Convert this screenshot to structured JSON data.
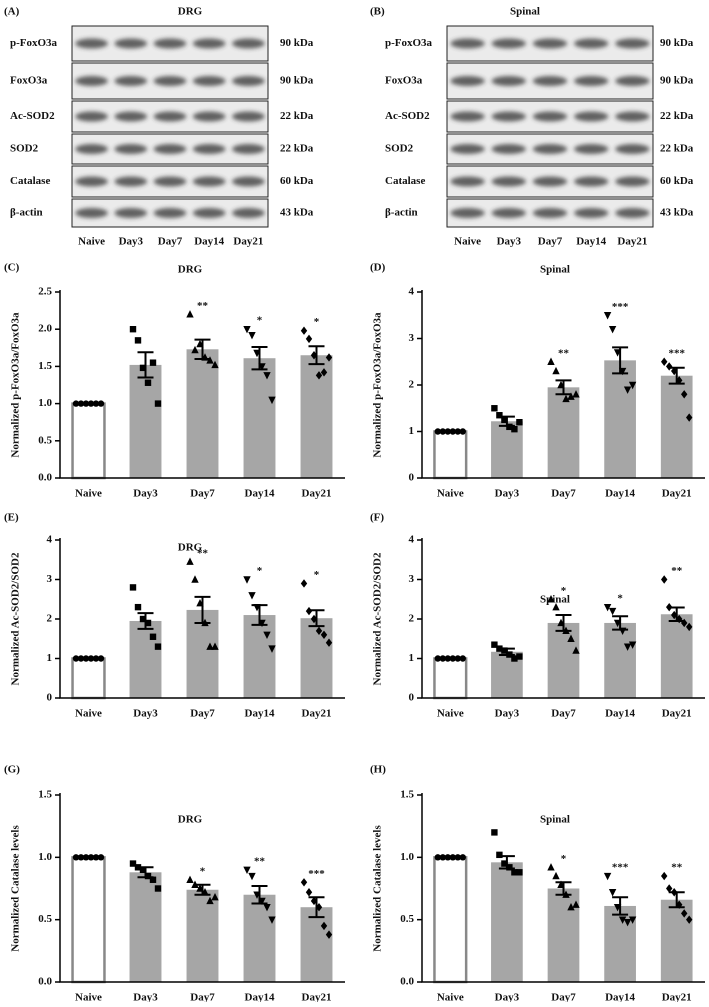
{
  "blots": [
    {
      "panel": "(A)",
      "title": "DRG",
      "rows": [
        {
          "protein": "p-FoxO3a",
          "size": "90 kDa"
        },
        {
          "protein": "FoxO3a",
          "size": "90 kDa"
        },
        {
          "protein": "Ac-SOD2",
          "size": "22 kDa"
        },
        {
          "protein": "SOD2",
          "size": "22 kDa"
        },
        {
          "protein": "Catalase",
          "size": "60 kDa"
        },
        {
          "protein": "β-actin",
          "size": "43 kDa"
        }
      ],
      "lanes": [
        "Naive",
        "Day3",
        "Day7",
        "Day14",
        "Day21"
      ]
    },
    {
      "panel": "(B)",
      "title": "Spinal",
      "rows": [
        {
          "protein": "p-FoxO3a",
          "size": "90 kDa"
        },
        {
          "protein": "FoxO3a",
          "size": "90 kDa"
        },
        {
          "protein": "Ac-SOD2",
          "size": "22 kDa"
        },
        {
          "protein": "SOD2",
          "size": "22 kDa"
        },
        {
          "protein": "Catalase",
          "size": "60 kDa"
        },
        {
          "protein": "β-actin",
          "size": "43 kDa"
        }
      ],
      "lanes": [
        "Naive",
        "Day3",
        "Day7",
        "Day14",
        "Day21"
      ]
    }
  ],
  "chart_data": [
    {
      "type": "bar",
      "panel": "(C)",
      "title": "DRG",
      "ylabel": "Normalized p-FoxO3a/FoxO3a",
      "categories": [
        "Naive",
        "Day3",
        "Day7",
        "Day14",
        "Day21"
      ],
      "colors": [
        "#ffffff",
        "#a6a6a6",
        "#a6a6a6",
        "#a6a6a6",
        "#a6a6a6"
      ],
      "markers": [
        "circle",
        "square",
        "triangle-up",
        "triangle-down",
        "diamond"
      ],
      "values": [
        1,
        1.52,
        1.73,
        1.61,
        1.65
      ],
      "errors": [
        0,
        0.17,
        0.13,
        0.15,
        0.12
      ],
      "annotations": [
        null,
        null,
        "**",
        "*",
        "*"
      ],
      "points": [
        [
          1,
          1,
          1,
          1,
          1,
          1
        ],
        [
          2.0,
          1.85,
          1.48,
          1.28,
          1.55,
          1.0
        ],
        [
          2.2,
          1.72,
          1.8,
          1.62,
          1.58,
          1.52
        ],
        [
          2.0,
          1.92,
          1.68,
          1.5,
          1.38,
          1.05
        ],
        [
          1.98,
          1.87,
          1.65,
          1.38,
          1.42,
          1.62
        ]
      ],
      "ylim": [
        0,
        2.5
      ],
      "yticks": [
        {
          "value": 0,
          "label": "0.0"
        },
        {
          "value": 0.5,
          "label": "0.5"
        },
        {
          "value": 1,
          "label": "1.0"
        },
        {
          "value": 1.5,
          "label": "1.5"
        },
        {
          "value": 2,
          "label": "2.0"
        },
        {
          "value": 2.5,
          "label": "2.5"
        }
      ]
    },
    {
      "type": "bar",
      "panel": "(D)",
      "title": "Spinal",
      "ylabel": "Normalized p-FoxO3a/FoxO3a",
      "categories": [
        "Naive",
        "Day3",
        "Day7",
        "Day14",
        "Day21"
      ],
      "colors": [
        "#ffffff",
        "#a6a6a6",
        "#a6a6a6",
        "#a6a6a6",
        "#a6a6a6"
      ],
      "markers": [
        "circle",
        "square",
        "triangle-up",
        "triangle-down",
        "diamond"
      ],
      "values": [
        1,
        1.22,
        1.95,
        2.53,
        2.2
      ],
      "errors": [
        0,
        0.1,
        0.15,
        0.28,
        0.17
      ],
      "annotations": [
        null,
        null,
        "**",
        "***",
        "***"
      ],
      "points": [
        [
          1,
          1,
          1,
          1,
          1,
          1
        ],
        [
          1.5,
          1.35,
          1.25,
          1.1,
          1.05,
          1.2
        ],
        [
          2.5,
          2.3,
          2.0,
          1.7,
          1.75,
          1.8
        ],
        [
          3.5,
          3.2,
          2.7,
          2.3,
          1.9,
          2.0
        ],
        [
          2.5,
          2.4,
          2.3,
          2.1,
          1.8,
          1.3
        ]
      ],
      "ylim": [
        0,
        4
      ],
      "yticks": [
        0,
        1,
        2,
        3,
        4
      ]
    },
    {
      "type": "bar",
      "panel": "(E)",
      "title": "DRG",
      "ylabel": "Normalized Ac-SOD2/SOD2",
      "categories": [
        "Naive",
        "Day3",
        "Day7",
        "Day14",
        "Day21"
      ],
      "colors": [
        "#ffffff",
        "#a6a6a6",
        "#a6a6a6",
        "#a6a6a6",
        "#a6a6a6"
      ],
      "markers": [
        "circle",
        "square",
        "triangle-up",
        "triangle-down",
        "diamond"
      ],
      "values": [
        1,
        1.95,
        2.23,
        2.1,
        2.02
      ],
      "errors": [
        0,
        0.2,
        0.33,
        0.25,
        0.2
      ],
      "annotations": [
        null,
        null,
        "**",
        "*",
        "*"
      ],
      "points": [
        [
          1,
          1,
          1,
          1,
          1,
          1
        ],
        [
          2.8,
          2.3,
          2.0,
          1.9,
          1.55,
          1.3
        ],
        [
          3.45,
          3.0,
          2.4,
          1.9,
          1.3,
          1.3
        ],
        [
          3.0,
          2.6,
          2.3,
          1.9,
          1.6,
          1.25
        ],
        [
          2.9,
          2.2,
          2.0,
          1.7,
          1.6,
          1.4
        ]
      ],
      "ylim": [
        0,
        4
      ],
      "yticks": [
        0,
        1,
        2,
        3,
        4
      ]
    },
    {
      "type": "bar",
      "panel": "(F)",
      "title": "Spinal",
      "ylabel": "Normalized Ac-SOD2/SOD2",
      "categories": [
        "Naive",
        "Day3",
        "Day7",
        "Day14",
        "Day21"
      ],
      "colors": [
        "#ffffff",
        "#a6a6a6",
        "#a6a6a6",
        "#a6a6a6",
        "#a6a6a6"
      ],
      "markers": [
        "circle",
        "square",
        "triangle-up",
        "triangle-down",
        "diamond"
      ],
      "values": [
        1,
        1.17,
        1.9,
        1.9,
        2.12
      ],
      "errors": [
        0,
        0.08,
        0.2,
        0.17,
        0.17
      ],
      "annotations": [
        null,
        null,
        "*",
        "*",
        "**"
      ],
      "points": [
        [
          1,
          1,
          1,
          1,
          1,
          1
        ],
        [
          1.35,
          1.25,
          1.2,
          1.1,
          1.0,
          1.05
        ],
        [
          2.5,
          2.3,
          1.9,
          1.7,
          1.5,
          1.2
        ],
        [
          2.3,
          2.2,
          1.9,
          1.7,
          1.3,
          1.35
        ],
        [
          3.0,
          2.3,
          2.1,
          2.0,
          1.9,
          1.8
        ]
      ],
      "ylim": [
        0,
        4
      ],
      "yticks": [
        0,
        1,
        2,
        3,
        4
      ]
    },
    {
      "type": "bar",
      "panel": "(G)",
      "title": "DRG",
      "ylabel": "Normalized Catalase levels",
      "categories": [
        "Naive",
        "Day3",
        "Day7",
        "Day14",
        "Day21"
      ],
      "colors": [
        "#ffffff",
        "#a6a6a6",
        "#a6a6a6",
        "#a6a6a6",
        "#a6a6a6"
      ],
      "markers": [
        "circle",
        "square",
        "triangle-up",
        "triangle-down",
        "diamond"
      ],
      "values": [
        1,
        0.88,
        0.74,
        0.7,
        0.6
      ],
      "errors": [
        0,
        0.04,
        0.04,
        0.07,
        0.08
      ],
      "annotations": [
        null,
        null,
        "*",
        "**",
        "***"
      ],
      "points": [
        [
          1,
          1,
          1,
          1,
          1,
          1
        ],
        [
          0.95,
          0.92,
          0.9,
          0.85,
          0.82,
          0.75
        ],
        [
          0.82,
          0.78,
          0.75,
          0.72,
          0.65,
          0.68
        ],
        [
          0.9,
          0.85,
          0.7,
          0.65,
          0.6,
          0.5
        ],
        [
          0.8,
          0.72,
          0.65,
          0.6,
          0.45,
          0.38
        ]
      ],
      "ylim": [
        0,
        1.5
      ],
      "yticks": [
        {
          "value": 0,
          "label": "0.0"
        },
        {
          "value": 0.5,
          "label": "0.5"
        },
        {
          "value": 1,
          "label": "1.0"
        },
        {
          "value": 1.5,
          "label": "1.5"
        }
      ]
    },
    {
      "type": "bar",
      "panel": "(H)",
      "title": "Spinal",
      "ylabel": "Normalized Catalase levels",
      "categories": [
        "Naive",
        "Day3",
        "Day7",
        "Day14",
        "Day21"
      ],
      "colors": [
        "#ffffff",
        "#a6a6a6",
        "#a6a6a6",
        "#a6a6a6",
        "#a6a6a6"
      ],
      "markers": [
        "circle",
        "square",
        "triangle-up",
        "triangle-down",
        "diamond"
      ],
      "values": [
        1,
        0.96,
        0.75,
        0.61,
        0.66
      ],
      "errors": [
        0,
        0.05,
        0.05,
        0.07,
        0.06
      ],
      "annotations": [
        null,
        null,
        "*",
        "***",
        "**"
      ],
      "points": [
        [
          1,
          1,
          1,
          1,
          1,
          1
        ],
        [
          1.2,
          1.02,
          0.95,
          0.92,
          0.88,
          0.88
        ],
        [
          0.92,
          0.85,
          0.78,
          0.7,
          0.6,
          0.62
        ],
        [
          0.85,
          0.72,
          0.6,
          0.5,
          0.48,
          0.5
        ],
        [
          0.85,
          0.75,
          0.72,
          0.62,
          0.55,
          0.5
        ]
      ],
      "ylim": [
        0,
        1.5
      ],
      "yticks": [
        {
          "value": 0,
          "label": "0.0"
        },
        {
          "value": 0.5,
          "label": "0.5"
        },
        {
          "value": 1,
          "label": "1.0"
        },
        {
          "value": 1.5,
          "label": "1.5"
        }
      ]
    }
  ]
}
